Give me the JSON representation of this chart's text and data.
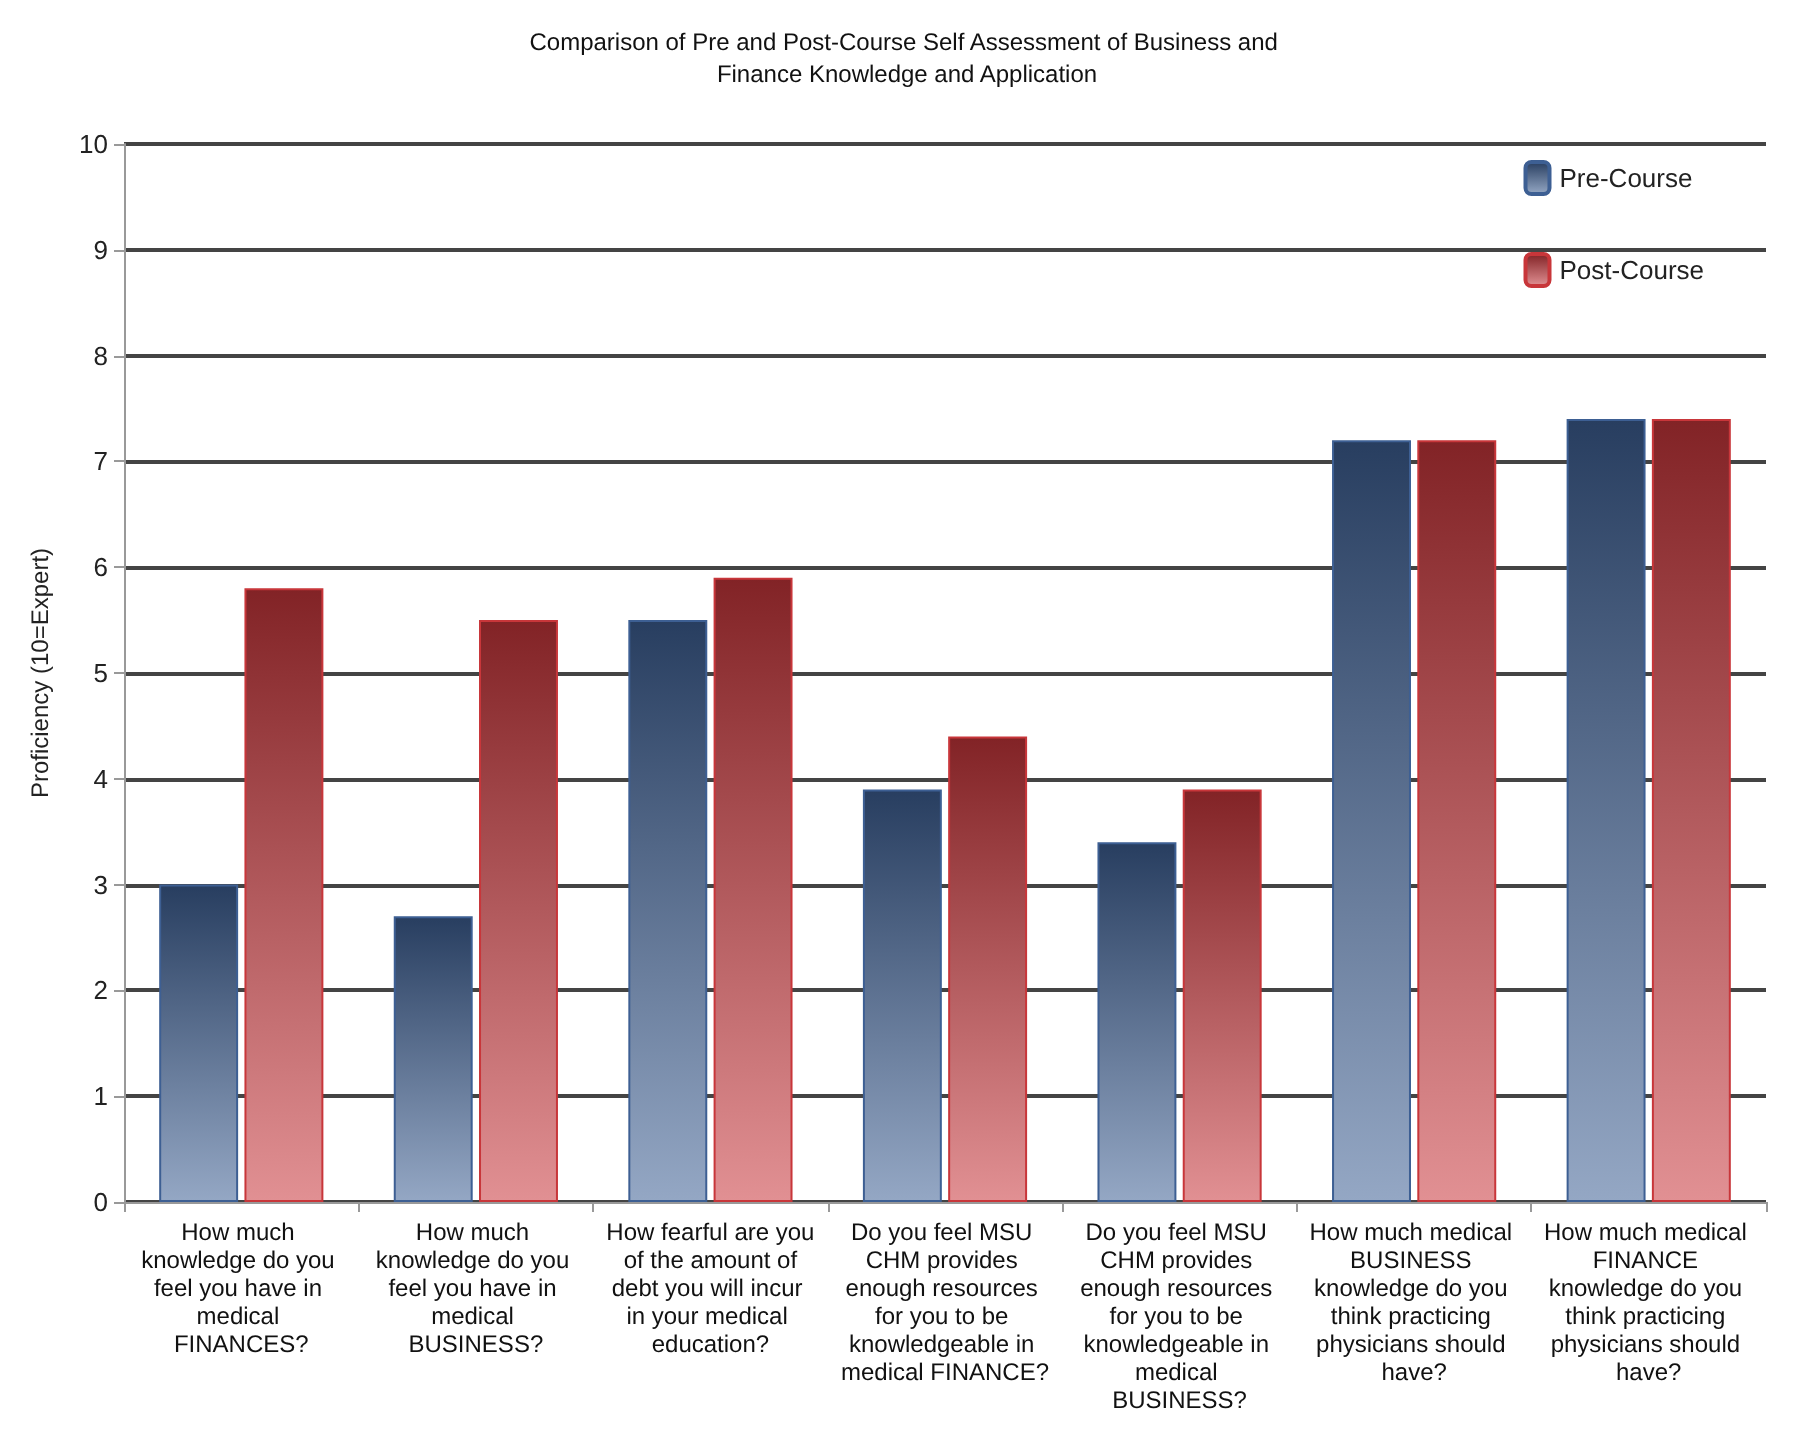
{
  "chart_data": {
    "type": "bar",
    "title": "Comparison of Pre and Post-Course Self Assessment of Business and Finance Knowledge and Application",
    "ylabel": "Proficiency (10=Expert)",
    "categories": [
      "How much knowledge do you feel you have in medical FINANCES?",
      "How much knowledge do you feel you have in medical BUSINESS?",
      "How fearful are you of the amount of debt you will incur in your medical education?",
      "Do you feel MSU CHM provides enough resources for you to be knowledgeable in medical FINANCE?",
      "Do you feel MSU CHM provides enough resources for you to be knowledgeable in medical BUSINESS?",
      "How much medical BUSINESS knowledge do you think practicing physicians should have?",
      "How much medical FINANCE knowledge do you think practicing physicians should have?"
    ],
    "series": [
      {
        "name": "Pre-Course",
        "color": "#3d5f93",
        "values": [
          3.0,
          2.7,
          5.5,
          3.9,
          3.4,
          7.2,
          7.4
        ]
      },
      {
        "name": "Post-Course",
        "color": "#c8363a",
        "values": [
          5.8,
          5.5,
          5.9,
          4.4,
          3.9,
          7.2,
          7.4
        ]
      }
    ],
    "ylim": [
      0,
      10
    ],
    "yticks": [
      0,
      1,
      2,
      3,
      4,
      5,
      6,
      7,
      8,
      9,
      10
    ],
    "grid": "y",
    "legend": "top right"
  }
}
